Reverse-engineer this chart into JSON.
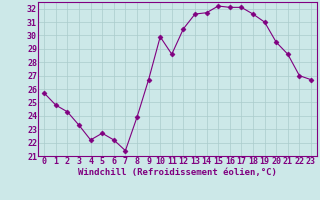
{
  "x": [
    0,
    1,
    2,
    3,
    4,
    5,
    6,
    7,
    8,
    9,
    10,
    11,
    12,
    13,
    14,
    15,
    16,
    17,
    18,
    19,
    20,
    21,
    22,
    23
  ],
  "y": [
    25.7,
    24.8,
    24.3,
    23.3,
    22.2,
    22.7,
    22.2,
    21.4,
    23.9,
    26.7,
    29.9,
    28.6,
    30.5,
    31.6,
    31.7,
    32.2,
    32.1,
    32.1,
    31.6,
    31.0,
    29.5,
    28.6,
    27.0,
    26.7
  ],
  "xlabel": "Windchill (Refroidissement éolien,°C)",
  "line_color": "#800080",
  "marker": "D",
  "marker_size": 2.5,
  "bg_color": "#cce8e8",
  "grid_color": "#aacccc",
  "tick_color": "#800080",
  "label_color": "#800080",
  "spine_color": "#800080",
  "xlim": [
    -0.5,
    23.5
  ],
  "ylim": [
    21,
    32.5
  ],
  "yticks": [
    21,
    22,
    23,
    24,
    25,
    26,
    27,
    28,
    29,
    30,
    31,
    32
  ],
  "xticks": [
    0,
    1,
    2,
    3,
    4,
    5,
    6,
    7,
    8,
    9,
    10,
    11,
    12,
    13,
    14,
    15,
    16,
    17,
    18,
    19,
    20,
    21,
    22,
    23
  ],
  "xlabel_fontsize": 6.5,
  "tick_fontsize": 6.0
}
